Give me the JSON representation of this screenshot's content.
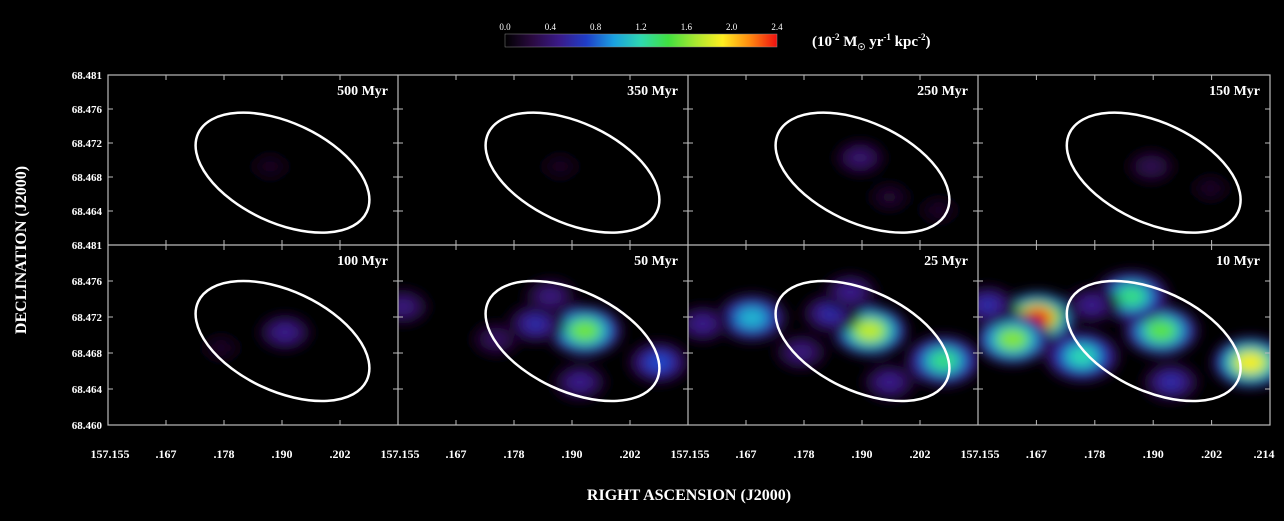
{
  "chart_data": {
    "type": "heatmap",
    "xlabel": "RIGHT ASCENSION (J2000)",
    "ylabel": "DECLINATION (J2000)",
    "colorbar": {
      "ticks": [
        "0.0",
        "0.4",
        "0.8",
        "1.2",
        "1.6",
        "2.0",
        "2.4"
      ],
      "range": [
        0.0,
        2.4
      ],
      "unit_label": {
        "prefix": "(10",
        "exp1": "-2",
        "mid": " M",
        "sun": "☉",
        "mid2": "  yr",
        "exp2": "-1",
        "mid3": " kpc",
        "exp3": "-2",
        "suffix": ")"
      },
      "colormap": [
        "#000000",
        "#2a0a40",
        "#3a1a88",
        "#1f3ec8",
        "#1aa0e0",
        "#2ed8b0",
        "#40e040",
        "#a8e830",
        "#ffee20",
        "#ff8a10",
        "#ee1010"
      ]
    },
    "y_ticks_top": [
      "68.481",
      "68.476",
      "68.472",
      "68.468",
      "68.464"
    ],
    "y_ticks_bottom": [
      "68.481",
      "68.476",
      "68.472",
      "68.468",
      "68.464",
      "68.460"
    ],
    "x_ticks": [
      [
        "157.155",
        ".167",
        ".178",
        ".190",
        ".202"
      ],
      [
        "157.155",
        ".167",
        ".178",
        ".190",
        ".202"
      ],
      [
        "157.155",
        ".167",
        ".178",
        ".190",
        ".202"
      ],
      [
        "157.155",
        ".167",
        ".178",
        ".190",
        ".202",
        ".214"
      ]
    ],
    "panels": [
      {
        "label": "500 Myr",
        "blobs": [
          {
            "ra": 157.188,
            "dec": 68.4705,
            "value": 0.12
          }
        ]
      },
      {
        "label": "350 Myr",
        "blobs": [
          {
            "ra": 157.188,
            "dec": 68.4705,
            "value": 0.12
          }
        ]
      },
      {
        "label": "250 Myr",
        "blobs": [
          {
            "ra": 157.19,
            "dec": 68.4715,
            "value": 0.4
          },
          {
            "ra": 157.196,
            "dec": 68.467,
            "value": 0.18
          },
          {
            "ra": 157.206,
            "dec": 68.4655,
            "value": 0.15
          }
        ]
      },
      {
        "label": "150 Myr",
        "blobs": [
          {
            "ra": 157.19,
            "dec": 68.4705,
            "value": 0.3
          },
          {
            "ra": 157.202,
            "dec": 68.468,
            "value": 0.15
          }
        ]
      },
      {
        "label": "100 Myr",
        "blobs": [
          {
            "ra": 157.191,
            "dec": 68.4708,
            "value": 0.5
          },
          {
            "ra": 157.178,
            "dec": 68.469,
            "value": 0.15
          }
        ]
      },
      {
        "label": "50 Myr",
        "blobs": [
          {
            "ra": 157.193,
            "dec": 68.471,
            "value": 1.55
          },
          {
            "ra": 157.183,
            "dec": 68.4718,
            "value": 0.6
          },
          {
            "ra": 157.186,
            "dec": 68.475,
            "value": 0.45
          },
          {
            "ra": 157.208,
            "dec": 68.4673,
            "value": 0.75
          },
          {
            "ra": 157.192,
            "dec": 68.465,
            "value": 0.5
          },
          {
            "ra": 157.156,
            "dec": 68.4738,
            "value": 0.45
          },
          {
            "ra": 157.175,
            "dec": 68.47,
            "value": 0.35
          }
        ]
      },
      {
        "label": "25 Myr",
        "blobs": [
          {
            "ra": 157.192,
            "dec": 68.471,
            "value": 1.75
          },
          {
            "ra": 157.168,
            "dec": 68.4725,
            "value": 1.05
          },
          {
            "ra": 157.184,
            "dec": 68.473,
            "value": 0.6
          },
          {
            "ra": 157.188,
            "dec": 68.4755,
            "value": 0.5
          },
          {
            "ra": 157.178,
            "dec": 68.4685,
            "value": 0.45
          },
          {
            "ra": 157.207,
            "dec": 68.4675,
            "value": 1.3
          },
          {
            "ra": 157.196,
            "dec": 68.465,
            "value": 0.5
          },
          {
            "ra": 157.158,
            "dec": 68.4718,
            "value": 0.5
          }
        ]
      },
      {
        "label": "10 Myr",
        "blobs": [
          {
            "ra": 157.167,
            "dec": 68.4725,
            "value": 2.4
          },
          {
            "ra": 157.162,
            "dec": 68.47,
            "value": 1.6
          },
          {
            "ra": 157.192,
            "dec": 68.471,
            "value": 1.5
          },
          {
            "ra": 157.186,
            "dec": 68.475,
            "value": 1.3
          },
          {
            "ra": 157.176,
            "dec": 68.468,
            "value": 1.2
          },
          {
            "ra": 157.21,
            "dec": 68.4673,
            "value": 1.9
          },
          {
            "ra": 157.194,
            "dec": 68.465,
            "value": 0.6
          },
          {
            "ra": 157.157,
            "dec": 68.474,
            "value": 0.6
          },
          {
            "ra": 157.178,
            "dec": 68.474,
            "value": 0.5
          }
        ]
      }
    ],
    "ellipse_outline_color": "#ffffff"
  }
}
